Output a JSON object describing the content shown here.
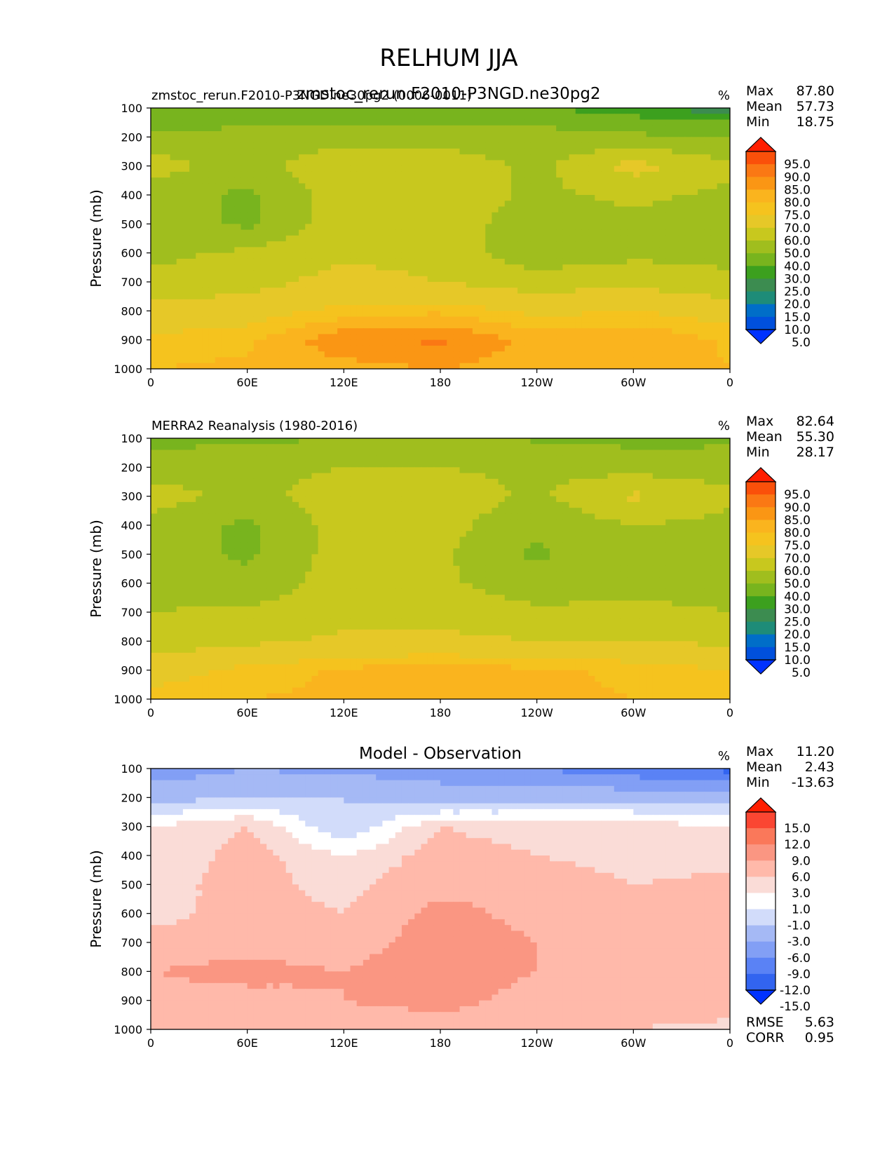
{
  "figure_title": "RELHUM JJA",
  "ylabel": "Pressure (mb)",
  "x_ticks": [
    "0",
    "60E",
    "120E",
    "180",
    "120W",
    "60W",
    "0"
  ],
  "y_ticks": [
    "100",
    "200",
    "300",
    "400",
    "500",
    "600",
    "700",
    "800",
    "900",
    "1000"
  ],
  "stat_labels": {
    "max": "Max",
    "mean": "Mean",
    "min": "Min",
    "rmse": "RMSE",
    "corr": "CORR"
  },
  "panels": [
    {
      "left_title": "zmstoc_rerun.F2010-P3NGD.ne30pg2 (0006-0011)",
      "center_title": "zmstoc_rerun.F2010-P3NGD.ne30pg2",
      "units": "%",
      "stats": {
        "max": "87.80",
        "mean": "57.73",
        "min": "18.75"
      },
      "colorbar_labels": [
        "95.0",
        "90.0",
        "85.0",
        "80.0",
        "75.0",
        "70.0",
        "60.0",
        "50.0",
        "40.0",
        "30.0",
        "25.0",
        "20.0",
        "15.0",
        "10.0",
        "5.0"
      ]
    },
    {
      "left_title": "MERRA2 Reanalysis (1980-2016)",
      "center_title": "",
      "units": "%",
      "stats": {
        "max": "82.64",
        "mean": "55.30",
        "min": "28.17"
      },
      "colorbar_labels": [
        "95.0",
        "90.0",
        "85.0",
        "80.0",
        "75.0",
        "70.0",
        "60.0",
        "50.0",
        "40.0",
        "30.0",
        "25.0",
        "20.0",
        "15.0",
        "10.0",
        "5.0"
      ]
    },
    {
      "left_title": "",
      "center_title": "Model - Observation",
      "units": "%",
      "stats": {
        "max": "11.20",
        "mean": "2.43",
        "min": "-13.63"
      },
      "colorbar_labels": [
        "15.0",
        "12.0",
        "9.0",
        "6.0",
        "3.0",
        "1.0",
        "-1.0",
        "-3.0",
        "-6.0",
        "-9.0",
        "-12.0",
        "-15.0"
      ],
      "rmse": "5.63",
      "corr": "0.95"
    }
  ],
  "colors": {
    "abs_scale": [
      "#0032ff",
      "#0050dc",
      "#006ec8",
      "#1e8c78",
      "#3c8c50",
      "#3ca01e",
      "#78b41e",
      "#a0be1e",
      "#c8c81e",
      "#e6c828",
      "#f5c31e",
      "#fab41e",
      "#fa9614",
      "#fa7814",
      "#fa500a",
      "#ff1e00"
    ],
    "diff_scale": [
      "#0032ff",
      "#3264f0",
      "#5a82f5",
      "#829ff5",
      "#a5b9f5",
      "#d2dcfa",
      "#ffffff",
      "#fadcd7",
      "#ffb9aa",
      "#fa9682",
      "#fa785a",
      "#fa4632",
      "#ff1e00"
    ]
  },
  "chart_data": [
    {
      "type": "heatmap",
      "title": "zmstoc_rerun.F2010-P3NGD.ne30pg2 (0006-0011)",
      "variable": "RELHUM",
      "season": "JJA",
      "units": "%",
      "x": [
        0,
        60,
        120,
        180,
        240,
        300,
        360
      ],
      "y": [
        100,
        200,
        300,
        400,
        500,
        600,
        700,
        800,
        900,
        1000
      ],
      "z": [
        [
          29,
          33,
          32,
          33,
          31,
          25,
          22
        ],
        [
          42,
          44,
          46,
          45,
          45,
          42,
          40
        ],
        [
          55,
          45,
          58,
          57,
          47,
          64,
          52
        ],
        [
          45,
          38,
          56,
          56,
          48,
          52,
          48
        ],
        [
          46,
          38,
          56,
          55,
          45,
          48,
          45
        ],
        [
          47,
          52,
          58,
          56,
          43,
          47,
          47
        ],
        [
          53,
          56,
          64,
          60,
          55,
          58,
          52
        ],
        [
          63,
          66,
          72,
          74,
          68,
          70,
          66
        ],
        [
          72,
          74,
          84,
          86,
          78,
          80,
          74
        ],
        [
          75,
          76,
          78,
          80,
          77,
          78,
          75
        ]
      ],
      "levels": [
        5,
        10,
        15,
        20,
        25,
        30,
        40,
        50,
        60,
        70,
        75,
        80,
        85,
        90,
        95
      ],
      "xlabel": "",
      "ylabel": "Pressure (mb)",
      "xlim": [
        0,
        360
      ],
      "ylim": [
        1000,
        100
      ],
      "stats": {
        "max": 87.8,
        "mean": 57.73,
        "min": 18.75
      }
    },
    {
      "type": "heatmap",
      "title": "MERRA2 Reanalysis (1980-2016)",
      "variable": "RELHUM",
      "season": "JJA",
      "units": "%",
      "x": [
        0,
        60,
        120,
        180,
        240,
        300,
        360
      ],
      "y": [
        100,
        200,
        300,
        400,
        500,
        600,
        700,
        800,
        900,
        1000
      ],
      "z": [
        [
          37,
          38,
          40,
          40,
          39,
          37,
          38
        ],
        [
          45,
          47,
          50,
          50,
          48,
          46,
          45
        ],
        [
          55,
          46,
          56,
          56,
          48,
          62,
          52
        ],
        [
          46,
          38,
          55,
          54,
          42,
          50,
          47
        ],
        [
          45,
          38,
          55,
          52,
          38,
          48,
          42
        ],
        [
          46,
          43,
          55,
          52,
          44,
          46,
          46
        ],
        [
          50,
          52,
          56,
          55,
          52,
          53,
          50
        ],
        [
          55,
          58,
          62,
          63,
          60,
          60,
          58
        ],
        [
          66,
          72,
          76,
          78,
          76,
          74,
          70
        ],
        [
          73,
          75,
          76,
          77,
          76,
          75,
          73
        ]
      ],
      "levels": [
        5,
        10,
        15,
        20,
        25,
        30,
        40,
        50,
        60,
        70,
        75,
        80,
        85,
        90,
        95
      ],
      "xlabel": "",
      "ylabel": "Pressure (mb)",
      "xlim": [
        0,
        360
      ],
      "ylim": [
        1000,
        100
      ],
      "stats": {
        "max": 82.64,
        "mean": 55.3,
        "min": 28.17
      }
    },
    {
      "type": "heatmap",
      "title": "Model - Observation",
      "variable": "RELHUM",
      "season": "JJA",
      "units": "%",
      "x": [
        0,
        60,
        120,
        180,
        240,
        300,
        360
      ],
      "y": [
        100,
        200,
        300,
        400,
        500,
        600,
        700,
        800,
        900,
        1000
      ],
      "z": [
        [
          -8,
          -6,
          -7,
          -7,
          -9,
          -11,
          -13
        ],
        [
          -4,
          -3,
          -3,
          -5,
          -4,
          -4,
          -4
        ],
        [
          1,
          3,
          -3,
          3,
          2,
          2,
          1
        ],
        [
          1,
          4,
          1,
          4,
          3,
          1,
          2
        ],
        [
          2,
          4,
          2,
          5,
          6,
          3,
          4
        ],
        [
          2,
          4,
          3,
          7,
          5,
          3,
          3
        ],
        [
          4,
          5,
          4,
          8,
          6,
          5,
          4
        ],
        [
          6,
          7,
          6,
          9,
          6,
          5,
          6
        ],
        [
          5,
          5,
          6,
          8,
          4,
          5,
          5
        ],
        [
          3,
          3,
          3,
          3,
          3,
          3,
          2
        ]
      ],
      "levels": [
        -15,
        -12,
        -9,
        -6,
        -3,
        -1,
        1,
        3,
        6,
        9,
        12,
        15
      ],
      "xlabel": "",
      "ylabel": "Pressure (mb)",
      "xlim": [
        0,
        360
      ],
      "ylim": [
        1000,
        100
      ],
      "stats": {
        "max": 11.2,
        "mean": 2.43,
        "min": -13.63,
        "rmse": 5.63,
        "corr": 0.95
      }
    }
  ]
}
